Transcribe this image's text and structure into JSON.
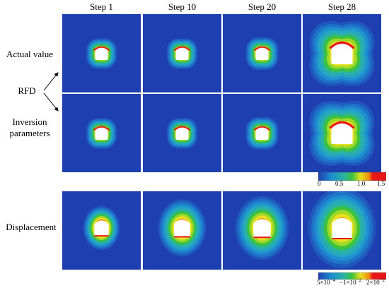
{
  "columns": [
    "Step 1",
    "Step 10",
    "Step 20",
    "Step 28"
  ],
  "rows": {
    "actual": "Actual value",
    "rfd": "RFD",
    "inversion_line1": "Inversion",
    "inversion_line2": "parameters",
    "displacement": "Displacement"
  },
  "colorbar_rfd": {
    "ticks": [
      "0",
      "0.5",
      "1.0",
      "1.5"
    ]
  },
  "colorbar_disp": {
    "ticks": [
      {
        "base": "5×10",
        "exp": "−4"
      },
      {
        "base": "−1×10",
        "exp": "−2"
      },
      {
        "base": "2×10",
        "exp": "−2"
      }
    ]
  },
  "colors": {
    "low": "#1e3fb0",
    "mid_low": "#1e8fd0",
    "mid": "#2ab3a0",
    "green": "#3cc23c",
    "yellow": "#e8e020",
    "orange": "#f08a10",
    "high": "#e81818"
  }
}
